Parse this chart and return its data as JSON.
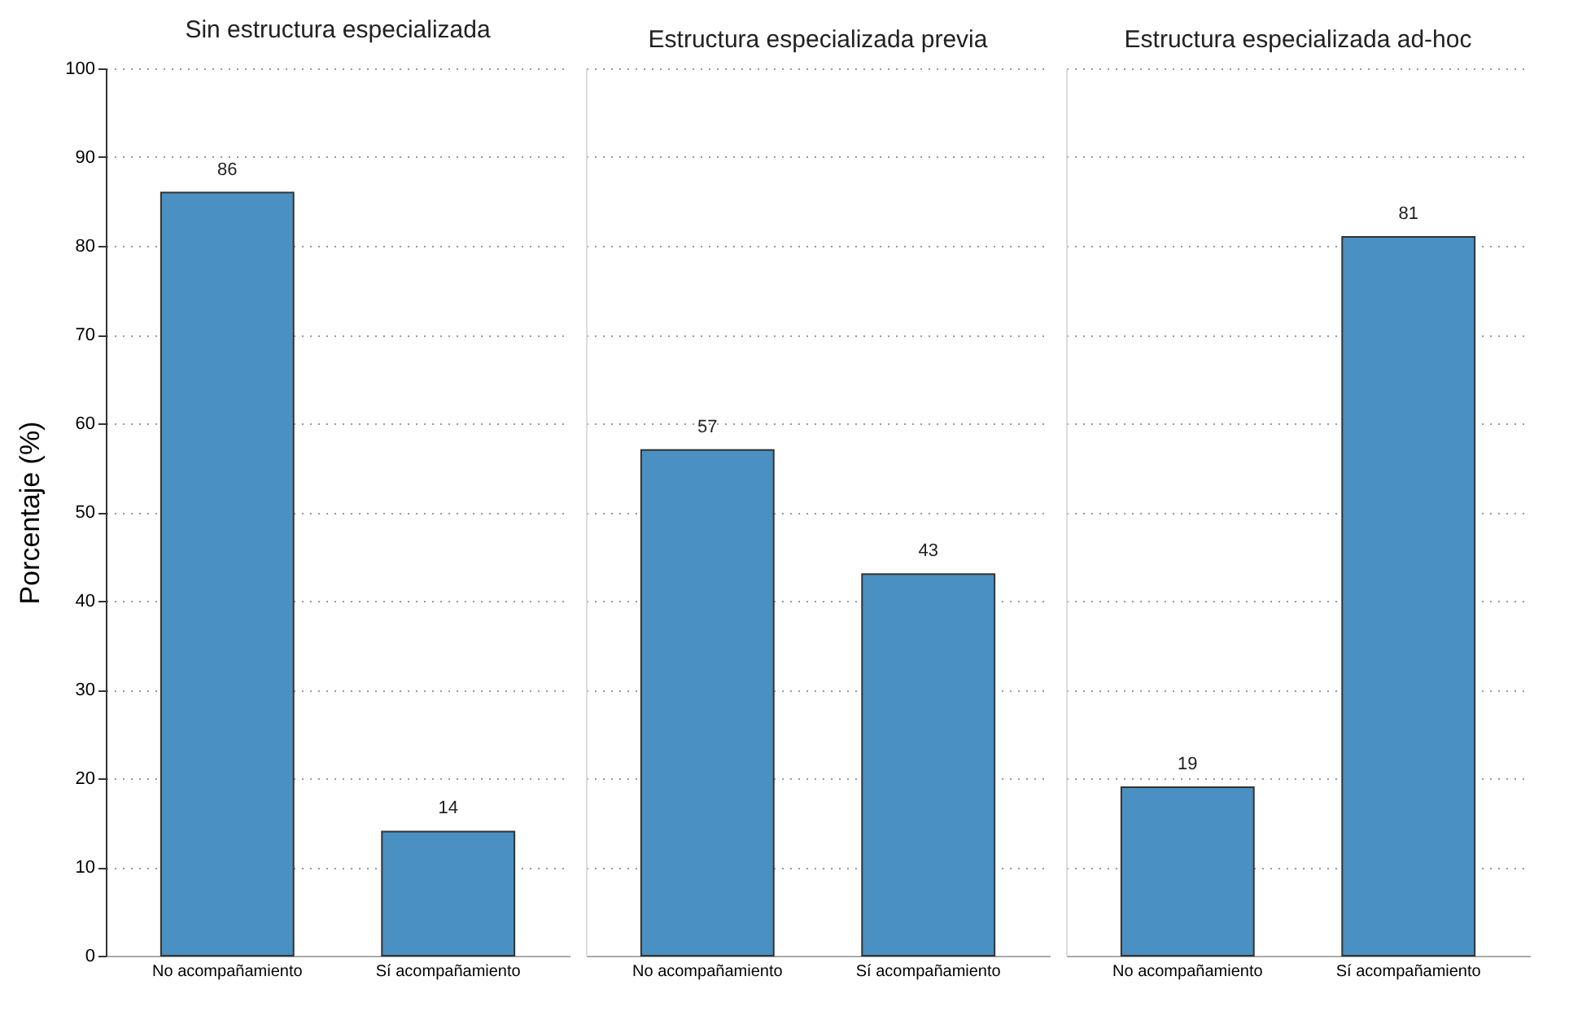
{
  "chart_data": [
    {
      "type": "bar",
      "title": "Sin estructura especializada",
      "ylabel": "Porcentaje (%)",
      "categories": [
        "No acompañamiento",
        "Sí acompañamiento"
      ],
      "values": [
        86,
        14
      ],
      "color": "#4a90c2",
      "ylim": [
        0,
        100
      ],
      "yticks": [
        0,
        10,
        20,
        30,
        40,
        50,
        60,
        70,
        80,
        90,
        100
      ],
      "grid": "y",
      "data_labels": true
    },
    {
      "type": "bar",
      "title": "Estructura especializada previa",
      "categories": [
        "No acompañamiento",
        "Sí acompañamiento"
      ],
      "values": [
        57,
        43
      ],
      "color": "#4a90c2",
      "ylim": [
        0,
        100
      ],
      "yticks": [
        0,
        10,
        20,
        30,
        40,
        50,
        60,
        70,
        80,
        90,
        100
      ],
      "grid": "y",
      "data_labels": true,
      "tick_labels": "x"
    },
    {
      "type": "bar",
      "title": "Estructura especializada ad-hoc",
      "categories": [
        "No acompañamiento",
        "Sí acompañamiento"
      ],
      "values": [
        19,
        81
      ],
      "color": "#4a90c2",
      "ylim": [
        0,
        100
      ],
      "yticks": [
        0,
        10,
        20,
        30,
        40,
        50,
        60,
        70,
        80,
        90,
        100
      ],
      "grid": "y",
      "data_labels": true,
      "tick_labels": "x"
    }
  ]
}
